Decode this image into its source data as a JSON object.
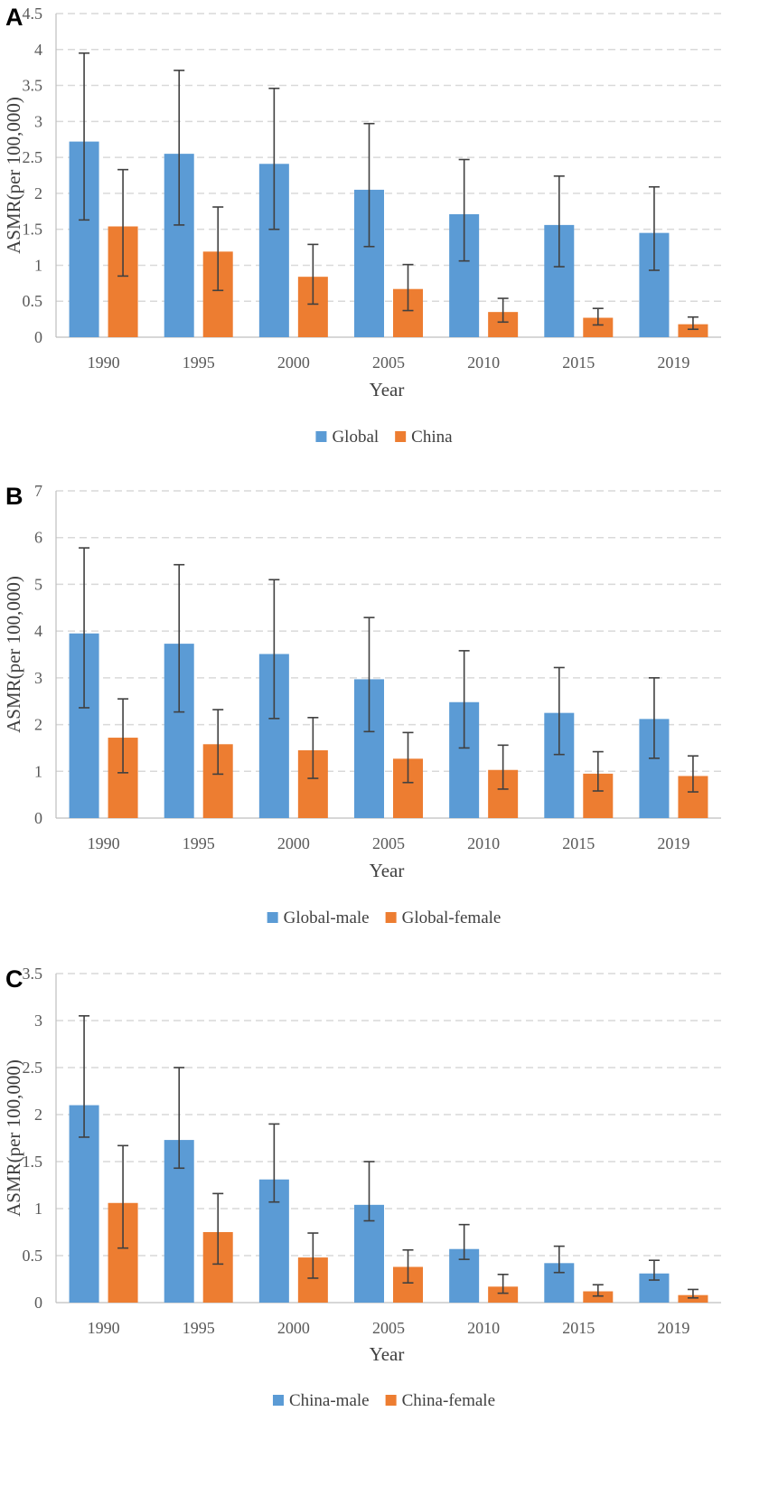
{
  "figure": {
    "colors": {
      "series1": "#5B9BD5",
      "series2": "#ED7D31",
      "grid": "#D9D9D9",
      "axis": "#BFBFBF",
      "error": "#404040"
    }
  },
  "chart_data": [
    {
      "panel": "A",
      "type": "bar",
      "categories": [
        "1990",
        "1995",
        "2000",
        "2005",
        "2010",
        "2015",
        "2019"
      ],
      "xlabel": "Year",
      "ylabel": "ASMR(per 100,000)",
      "ylim": [
        0,
        4.5
      ],
      "ytick_step": 0.5,
      "yticks": [
        "0",
        "0.5",
        "1",
        "1.5",
        "2",
        "2.5",
        "3",
        "3.5",
        "4",
        "4.5"
      ],
      "grid": true,
      "legend_position": "bottom-center",
      "series": [
        {
          "name": "Global",
          "values": [
            2.72,
            2.55,
            2.41,
            2.05,
            1.71,
            1.56,
            1.45
          ],
          "lower": [
            1.63,
            1.56,
            1.5,
            1.26,
            1.06,
            0.98,
            0.93
          ],
          "upper": [
            3.95,
            3.71,
            3.46,
            2.97,
            2.47,
            2.24,
            2.09
          ]
        },
        {
          "name": "China",
          "values": [
            1.54,
            1.19,
            0.84,
            0.67,
            0.35,
            0.27,
            0.18
          ],
          "lower": [
            0.85,
            0.65,
            0.46,
            0.37,
            0.21,
            0.17,
            0.11
          ],
          "upper": [
            2.33,
            1.81,
            1.29,
            1.01,
            0.54,
            0.4,
            0.28
          ]
        }
      ]
    },
    {
      "panel": "B",
      "type": "bar",
      "categories": [
        "1990",
        "1995",
        "2000",
        "2005",
        "2010",
        "2015",
        "2019"
      ],
      "xlabel": "Year",
      "ylabel": "ASMR(per 100,000)",
      "ylim": [
        0,
        7
      ],
      "ytick_step": 1,
      "yticks": [
        "0",
        "1",
        "2",
        "3",
        "4",
        "5",
        "6",
        "7"
      ],
      "grid": true,
      "legend_position": "bottom-center",
      "series": [
        {
          "name": "Global-male",
          "values": [
            3.95,
            3.73,
            3.51,
            2.97,
            2.48,
            2.25,
            2.12
          ],
          "lower": [
            2.36,
            2.27,
            2.13,
            1.85,
            1.5,
            1.36,
            1.28
          ],
          "upper": [
            5.78,
            5.42,
            5.1,
            4.29,
            3.58,
            3.22,
            3.0
          ]
        },
        {
          "name": "Global-female",
          "values": [
            1.72,
            1.58,
            1.45,
            1.27,
            1.03,
            0.95,
            0.9
          ],
          "lower": [
            0.97,
            0.94,
            0.85,
            0.76,
            0.62,
            0.58,
            0.56
          ],
          "upper": [
            2.55,
            2.32,
            2.15,
            1.83,
            1.56,
            1.42,
            1.33
          ]
        }
      ]
    },
    {
      "panel": "C",
      "type": "bar",
      "categories": [
        "1990",
        "1995",
        "2000",
        "2005",
        "2010",
        "2015",
        "2019"
      ],
      "xlabel": "Year",
      "ylabel": "ASMR(per 100,000)",
      "ylim": [
        0,
        3.5
      ],
      "ytick_step": 0.5,
      "yticks": [
        "0",
        "0.5",
        "1",
        "1.5",
        "2",
        "2.5",
        "3",
        "3.5"
      ],
      "grid": true,
      "legend_position": "bottom-center",
      "series": [
        {
          "name": "China-male",
          "values": [
            2.1,
            1.73,
            1.31,
            1.04,
            0.57,
            0.42,
            0.31
          ],
          "lower": [
            1.76,
            1.43,
            1.07,
            0.87,
            0.46,
            0.32,
            0.24
          ],
          "upper": [
            3.05,
            2.5,
            1.9,
            1.5,
            0.83,
            0.6,
            0.45
          ]
        },
        {
          "name": "China-female",
          "values": [
            1.06,
            0.75,
            0.48,
            0.38,
            0.17,
            0.12,
            0.08
          ],
          "lower": [
            0.58,
            0.41,
            0.26,
            0.21,
            0.1,
            0.07,
            0.05
          ],
          "upper": [
            1.67,
            1.16,
            0.74,
            0.56,
            0.3,
            0.19,
            0.14
          ]
        }
      ]
    }
  ]
}
